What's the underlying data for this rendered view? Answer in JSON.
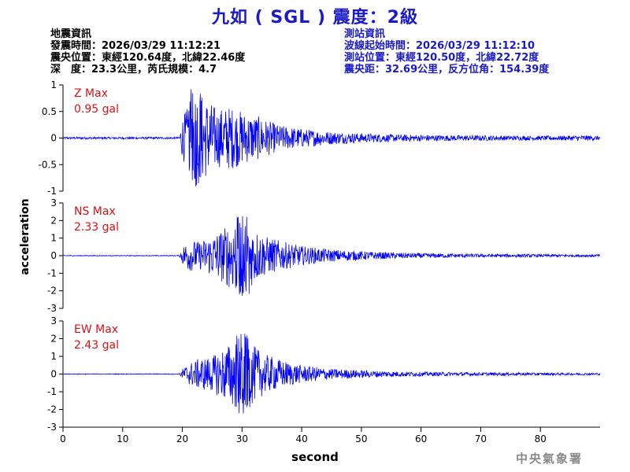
{
  "header": {
    "title": "九如 ( SGL ) 震度：2級"
  },
  "quake_info": {
    "heading": "地震資訊",
    "origin_time": "發震時間：2026/03/29 11:12:21",
    "epicenter": "震央位置：東經120.64度，北緯22.46度",
    "depth_magnitude": "深　度：23.3公里，芮氏規模：4.7"
  },
  "station_info": {
    "heading": "測站資訊",
    "arrival_time": "波線起始時間：2026/03/29 11:12:10",
    "location": "測站位置：東經120.50度，北緯22.72度",
    "distance": "震央距：32.69公里，反方位角：154.39度"
  },
  "credit": "中央氣象署",
  "colors": {
    "trace": "#0000ff",
    "title": "#1a1acc",
    "max_label": "#dd1111"
  },
  "chart_data": [
    {
      "type": "line",
      "component": "Z",
      "max_label": "Z Max",
      "max_value": "0.95 gal",
      "peak": 0.95,
      "ylim": [
        -1,
        1
      ],
      "yticks": [
        -1,
        -0.5,
        0,
        0.5,
        1
      ],
      "ytick_labels": [
        "-1",
        "-0.5",
        "0",
        "0.5",
        "1"
      ],
      "xlim": [
        0,
        90
      ],
      "p_arrival": 19.5,
      "s_peak_time": 22,
      "envelope": [
        [
          0,
          0.02
        ],
        [
          19.5,
          0.02
        ],
        [
          20,
          0.4
        ],
        [
          21,
          0.6
        ],
        [
          22,
          0.95
        ],
        [
          24,
          0.75
        ],
        [
          26,
          0.55
        ],
        [
          28,
          0.6
        ],
        [
          30,
          0.5
        ],
        [
          33,
          0.4
        ],
        [
          36,
          0.25
        ],
        [
          40,
          0.18
        ],
        [
          45,
          0.12
        ],
        [
          50,
          0.09
        ],
        [
          55,
          0.07
        ],
        [
          60,
          0.06
        ],
        [
          70,
          0.05
        ],
        [
          80,
          0.04
        ],
        [
          88,
          0.05
        ],
        [
          90,
          0.04
        ]
      ]
    },
    {
      "type": "line",
      "component": "NS",
      "max_label": "NS Max",
      "max_value": "2.33 gal",
      "peak": 2.33,
      "ylim": [
        -3,
        3
      ],
      "yticks": [
        -3,
        -2,
        -1,
        0,
        1,
        2,
        3
      ],
      "ytick_labels": [
        "-3",
        "-2",
        "-1",
        "0",
        "1",
        "2",
        "3"
      ],
      "xlim": [
        0,
        90
      ],
      "p_arrival": 19.5,
      "s_peak_time": 30,
      "envelope": [
        [
          0,
          0.02
        ],
        [
          19.5,
          0.02
        ],
        [
          20,
          0.5
        ],
        [
          21,
          0.9
        ],
        [
          23,
          0.8
        ],
        [
          25,
          1.2
        ],
        [
          27,
          1.6
        ],
        [
          29,
          2.2
        ],
        [
          30,
          2.33
        ],
        [
          32,
          1.6
        ],
        [
          34,
          1.1
        ],
        [
          37,
          0.8
        ],
        [
          40,
          0.55
        ],
        [
          45,
          0.35
        ],
        [
          50,
          0.25
        ],
        [
          55,
          0.18
        ],
        [
          60,
          0.14
        ],
        [
          70,
          0.1
        ],
        [
          80,
          0.08
        ],
        [
          90,
          0.07
        ]
      ]
    },
    {
      "type": "line",
      "component": "EW",
      "max_label": "EW Max",
      "max_value": "2.43 gal",
      "peak": 2.43,
      "ylim": [
        -3,
        3
      ],
      "yticks": [
        -3,
        -2,
        -1,
        0,
        1,
        2,
        3
      ],
      "ytick_labels": [
        "-3",
        "-2",
        "-1",
        "0",
        "1",
        "2",
        "3"
      ],
      "xlim": [
        0,
        90
      ],
      "p_arrival": 19.5,
      "s_peak_time": 30,
      "envelope": [
        [
          0,
          0.02
        ],
        [
          19.5,
          0.02
        ],
        [
          20,
          0.3
        ],
        [
          21,
          0.6
        ],
        [
          23,
          0.9
        ],
        [
          25,
          1.0
        ],
        [
          27,
          1.5
        ],
        [
          29,
          2.0
        ],
        [
          30,
          2.43
        ],
        [
          32,
          1.6
        ],
        [
          34,
          1.1
        ],
        [
          37,
          0.75
        ],
        [
          40,
          0.5
        ],
        [
          45,
          0.3
        ],
        [
          50,
          0.22
        ],
        [
          55,
          0.16
        ],
        [
          60,
          0.12
        ],
        [
          70,
          0.09
        ],
        [
          80,
          0.07
        ],
        [
          90,
          0.06
        ]
      ]
    }
  ],
  "x_axis": {
    "label": "second",
    "ticks": [
      0,
      10,
      20,
      30,
      40,
      50,
      60,
      70,
      80
    ],
    "tick_labels": [
      "0",
      "10",
      "20",
      "30",
      "40",
      "50",
      "60",
      "70",
      "80"
    ]
  },
  "y_axis": {
    "label": "acceleration"
  }
}
